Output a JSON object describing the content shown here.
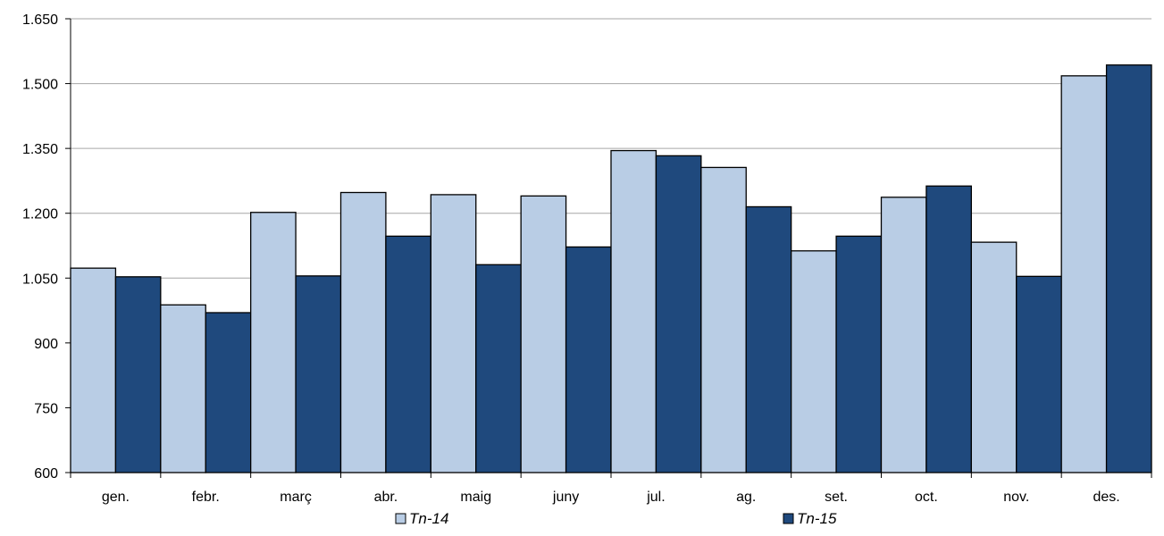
{
  "chart_data": {
    "type": "bar",
    "categories": [
      "gen.",
      "febr.",
      "març",
      "abr.",
      "maig",
      "juny",
      "jul.",
      "ag.",
      "set.",
      "oct.",
      "nov.",
      "des."
    ],
    "series": [
      {
        "name": "Tn-14",
        "values": [
          1073,
          988,
          1202,
          1248,
          1243,
          1240,
          1345,
          1306,
          1113,
          1237,
          1133,
          1518
        ],
        "color": "#b9cde5"
      },
      {
        "name": "Tn-15",
        "values": [
          1053,
          970,
          1055,
          1147,
          1081,
          1122,
          1333,
          1215,
          1147,
          1263,
          1054,
          1543
        ],
        "color": "#1f497d"
      }
    ],
    "ylim": [
      600,
      1650
    ],
    "yticks": [
      600,
      750,
      900,
      1050,
      1200,
      1350,
      1500,
      1650
    ],
    "ytick_labels": [
      "600",
      "750",
      "900",
      "1.050",
      "1.200",
      "1.350",
      "1.500",
      "1.650"
    ],
    "grid": true,
    "legend_position": "bottom",
    "title": "",
    "xlabel": "",
    "ylabel": ""
  }
}
